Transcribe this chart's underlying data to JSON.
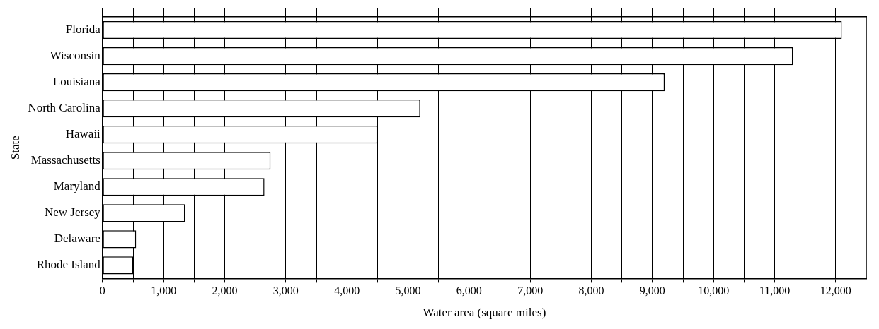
{
  "chart_data": {
    "type": "bar",
    "orientation": "horizontal",
    "xlabel": "Water area (square miles)",
    "ylabel": "State",
    "categories": [
      "Florida",
      "Wisconsin",
      "Louisiana",
      "North Carolina",
      "Hawaii",
      "Massachusetts",
      "Maryland",
      "New Jersey",
      "Delaware",
      "Rhode Island"
    ],
    "values": [
      12100,
      11300,
      9200,
      5200,
      4500,
      2750,
      2650,
      1350,
      550,
      500
    ],
    "color": "#ffffff",
    "xlim": [
      0,
      12500
    ],
    "xticks": [
      0,
      {
        "value": 500,
        "label": null
      },
      {
        "value": 1000,
        "label": "1,000"
      },
      {
        "value": 1500,
        "label": null
      },
      {
        "value": 2000,
        "label": "2,000"
      },
      {
        "value": 2500,
        "label": null
      },
      {
        "value": 3000,
        "label": "3,000"
      },
      {
        "value": 3500,
        "label": null
      },
      {
        "value": 4000,
        "label": "4,000"
      },
      {
        "value": 4500,
        "label": null
      },
      {
        "value": 5000,
        "label": "5,000"
      },
      {
        "value": 5500,
        "label": null
      },
      {
        "value": 6000,
        "label": "6,000"
      },
      {
        "value": 6500,
        "label": null
      },
      {
        "value": 7000,
        "label": "7,000"
      },
      {
        "value": 7500,
        "label": null
      },
      {
        "value": 8000,
        "label": "8,000"
      },
      {
        "value": 8500,
        "label": null
      },
      {
        "value": 9000,
        "label": "9,000"
      },
      {
        "value": 9500,
        "label": null
      },
      {
        "value": 10000,
        "label": "10,000"
      },
      {
        "value": 10500,
        "label": null
      },
      {
        "value": 11000,
        "label": "11,000"
      },
      {
        "value": 11500,
        "label": null
      },
      {
        "value": 12000,
        "label": "12,000"
      }
    ],
    "grid": "x"
  }
}
